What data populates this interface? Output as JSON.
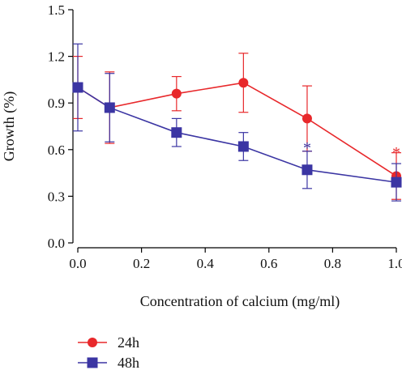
{
  "colors": {
    "series_24h": "#e8282b",
    "series_48h": "#3b35a3",
    "axis": "#000000"
  },
  "chart_data": {
    "type": "line",
    "xlabel": "Concentration of calcium (mg/ml)",
    "ylabel": "Growth (%)",
    "xlim": [
      0,
      1.0
    ],
    "ylim": [
      0,
      1.5
    ],
    "x_ticks": [
      0.0,
      0.2,
      0.4,
      0.6,
      0.8,
      1.0
    ],
    "x_tick_labels": [
      "0.0",
      "0.2",
      "0.4",
      "0.6",
      "0.8",
      "1.0"
    ],
    "y_ticks": [
      0.0,
      0.3,
      0.6,
      0.9,
      1.2,
      1.5
    ],
    "y_tick_labels": [
      "0.0",
      "0.3",
      "0.6",
      "0.9",
      "1.2",
      "1.5"
    ],
    "grid": false,
    "legend": "bottom-left, below plot",
    "series": [
      {
        "name": "24h",
        "marker": "circle",
        "color": "#e8282b",
        "x": [
          0.0,
          0.1,
          0.31,
          0.52,
          0.72,
          1.0
        ],
        "y": [
          1.0,
          0.87,
          0.96,
          1.03,
          0.8,
          0.43
        ],
        "err": [
          0.2,
          0.23,
          0.11,
          0.19,
          0.21,
          0.15
        ]
      },
      {
        "name": "48h",
        "marker": "square",
        "color": "#3b35a3",
        "x": [
          0.0,
          0.1,
          0.31,
          0.52,
          0.72,
          1.0
        ],
        "y": [
          1.0,
          0.87,
          0.71,
          0.62,
          0.47,
          0.39
        ],
        "err": [
          0.28,
          0.22,
          0.09,
          0.09,
          0.12,
          0.12
        ]
      }
    ],
    "annotations": [
      {
        "text": "*",
        "x": 0.72,
        "y": 0.63,
        "series": "48h",
        "color": "#3b35a3"
      },
      {
        "text": "*",
        "x": 1.0,
        "y": 0.6,
        "series": "24h",
        "color": "#e8282b"
      }
    ]
  }
}
